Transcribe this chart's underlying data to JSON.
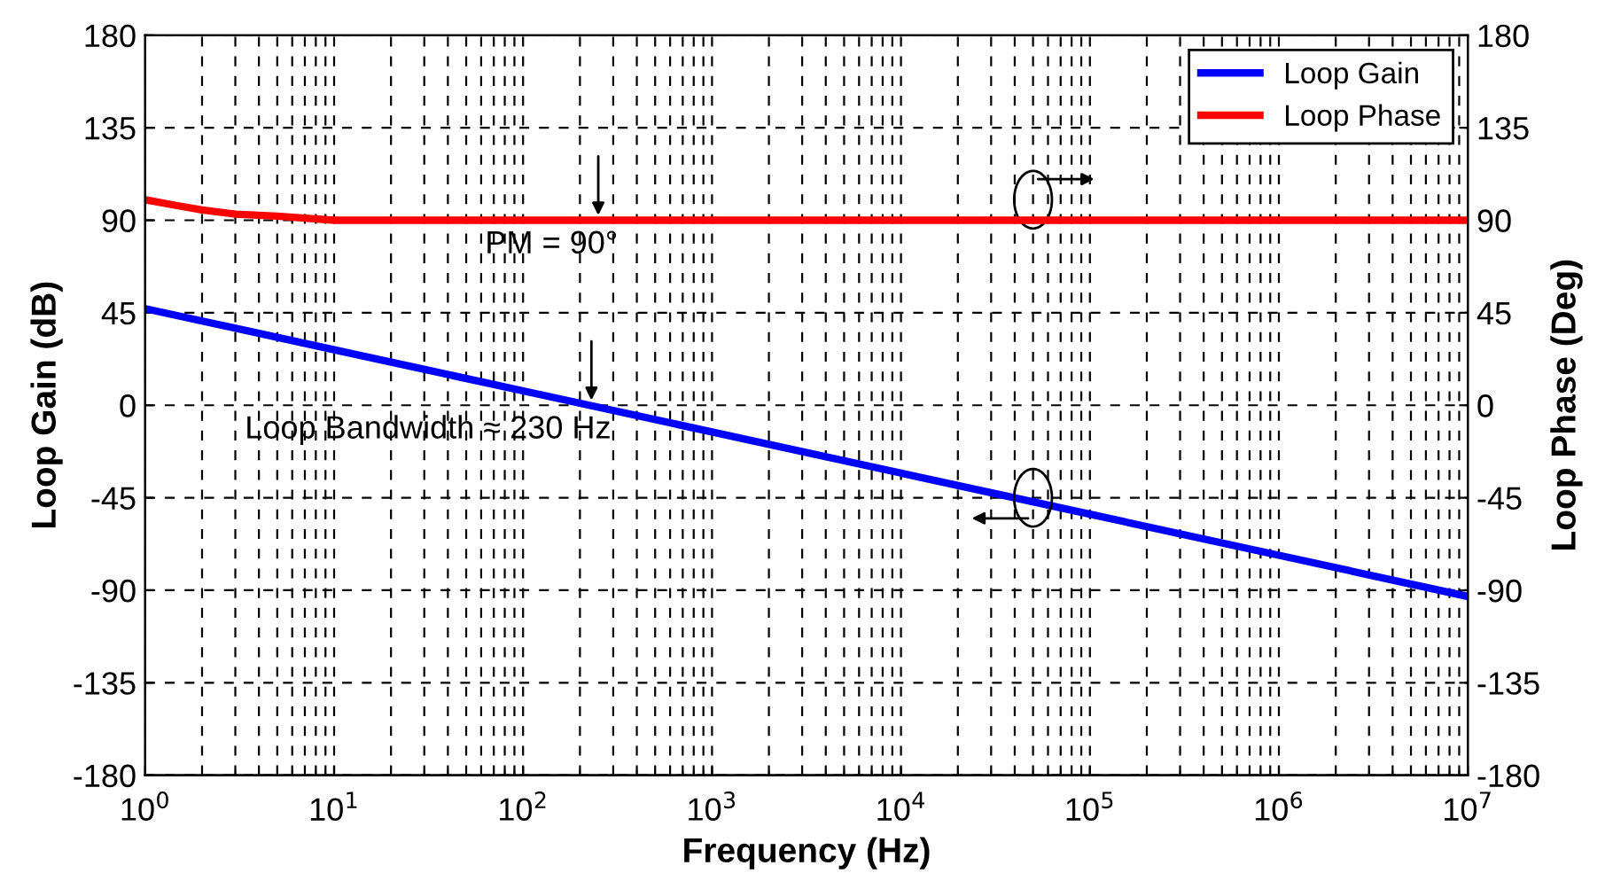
{
  "chart_data": {
    "type": "line",
    "xlabel": "Frequency (Hz)",
    "ylabel": "Loop Gain (dB)",
    "y2label": "Loop Phase (Deg)",
    "log": "x",
    "grid": true,
    "legend": "top right",
    "line_style": "solid",
    "marker": "none",
    "xlim": [
      1,
      10000000
    ],
    "xticks": [
      {
        "value": 1,
        "label": "10$^{0}$"
      },
      {
        "value": 10,
        "label": "10$^{1}$"
      },
      {
        "value": 100,
        "label": "10$^{2}$"
      },
      {
        "value": 1000,
        "label": "10$^{3}$"
      },
      {
        "value": 10000,
        "label": "10$^{4}$"
      },
      {
        "value": 100000,
        "label": "10$^{5}$"
      },
      {
        "value": 1000000,
        "label": "10$^{6}$"
      },
      {
        "value": 10000000,
        "label": "10$^{7}$"
      }
    ],
    "ylim": [
      -180,
      180
    ],
    "yticks": [
      -180,
      -135,
      -90,
      -45,
      0,
      45,
      90,
      135,
      180
    ],
    "y2lim": [
      -180,
      180
    ],
    "y2ticks": [
      -180,
      -135,
      -90,
      -45,
      0,
      45,
      90,
      135,
      180
    ],
    "series": [
      {
        "name": "Loop Gain",
        "color": "#0000ff",
        "x": [
          1,
          10,
          100,
          1000,
          10000,
          100000,
          1000000,
          10000000
        ],
        "values": [
          47,
          27,
          7,
          -13,
          -33,
          -53,
          -73,
          -93
        ]
      },
      {
        "name": "Loop Phase",
        "color": "#ff0000",
        "axis": "y2",
        "x": [
          1,
          1.5,
          2,
          3,
          5,
          7,
          10,
          10000000
        ],
        "values": [
          100,
          97,
          95,
          93,
          92,
          91,
          90,
          90
        ]
      }
    ],
    "annotations": [
      {
        "text": "PM = 90°",
        "x": 250,
        "y": 90
      },
      {
        "text": "Loop Bandwidth ≈ 230 Hz",
        "x": 230,
        "y": 0
      }
    ]
  }
}
